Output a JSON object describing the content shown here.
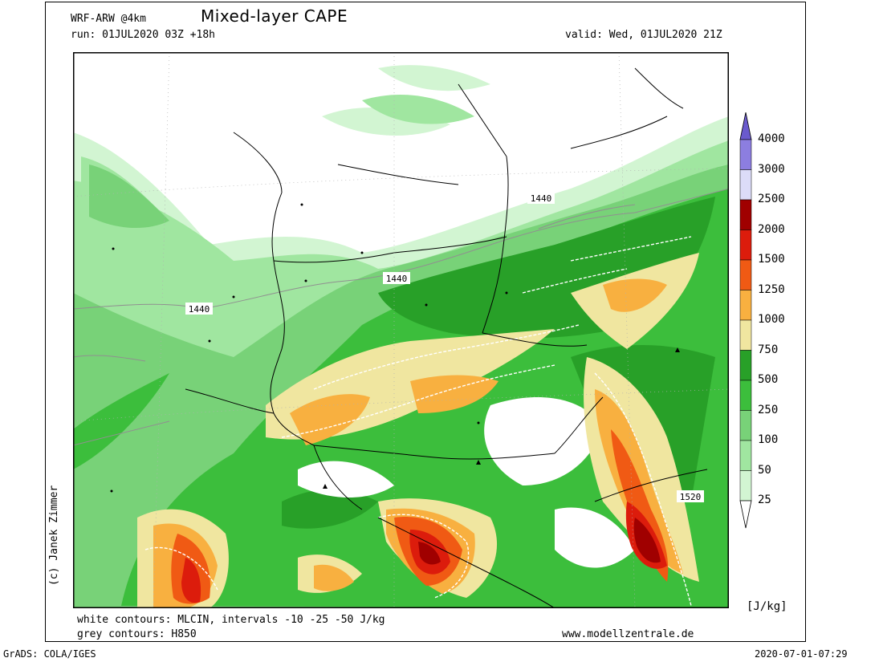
{
  "header": {
    "model": "WRF-ARW @4km",
    "title": "Mixed-layer CAPE",
    "run": "run: 01JUL2020 03Z +18h",
    "valid": "valid: Wed, 01JUL2020 21Z"
  },
  "colorbar": {
    "unit": "[J/kg]",
    "levels": [
      {
        "label": "4000",
        "color": "#6a5acd"
      },
      {
        "label": "3000",
        "color": "#8c7ee0"
      },
      {
        "label": "2500",
        "color": "#dcdcf8"
      },
      {
        "label": "2000",
        "color": "#a00000"
      },
      {
        "label": "1500",
        "color": "#dc1c0c"
      },
      {
        "label": "1250",
        "color": "#f05a14"
      },
      {
        "label": "1000",
        "color": "#f8b040"
      },
      {
        "label": "750",
        "color": "#f0e6a0"
      },
      {
        "label": "500",
        "color": "#28a028"
      },
      {
        "label": "250",
        "color": "#3cbe3c"
      },
      {
        "label": "100",
        "color": "#78d278"
      },
      {
        "label": "50",
        "color": "#a0e6a0"
      },
      {
        "label": "25",
        "color": "#d2f5d2"
      }
    ]
  },
  "map": {
    "contour_labels": [
      "1440",
      "1440",
      "1440",
      "1520"
    ]
  },
  "footer": {
    "legend_line1": "white contours: MLCIN, intervals -10 -25 -50 J/kg",
    "legend_line2": "grey contours: H850",
    "website": "www.modellzentrale.de",
    "copyright": "(c) Janek Zimmer",
    "grads": "GrADS: COLA/IGES",
    "timestamp": "2020-07-01-07:29"
  }
}
